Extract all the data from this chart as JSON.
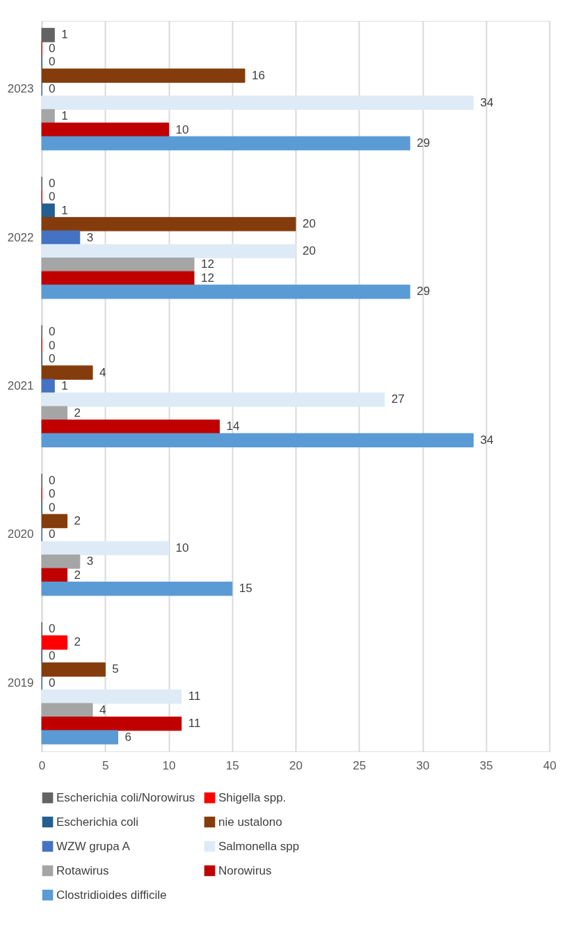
{
  "chart_data": {
    "type": "bar",
    "orientation": "horizontal",
    "categories": [
      "2023",
      "2022",
      "2021",
      "2020",
      "2019"
    ],
    "series": [
      {
        "name": "Escherichia coli/Norowirus",
        "color": "#636363",
        "values": [
          1,
          0,
          0,
          0,
          0
        ]
      },
      {
        "name": "Shigella spp.",
        "color": "#ff0000",
        "values": [
          0,
          0,
          0,
          0,
          2
        ]
      },
      {
        "name": "Escherichia coli",
        "color": "#255e91",
        "values": [
          0,
          1,
          0,
          0,
          0
        ]
      },
      {
        "name": "nie ustalono",
        "color": "#843c0c",
        "values": [
          16,
          20,
          4,
          2,
          5
        ]
      },
      {
        "name": "WZW grupa A",
        "color": "#4472c4",
        "values": [
          0,
          3,
          1,
          0,
          0
        ]
      },
      {
        "name": "Salmonella spp",
        "color": "#deebf7",
        "values": [
          34,
          20,
          27,
          10,
          11
        ]
      },
      {
        "name": "Rotawirus",
        "color": "#a5a5a5",
        "values": [
          1,
          12,
          2,
          3,
          4
        ]
      },
      {
        "name": "Norowirus",
        "color": "#c00000",
        "values": [
          10,
          12,
          14,
          2,
          11
        ]
      },
      {
        "name": "Clostridioides difficile",
        "color": "#5b9bd5",
        "values": [
          29,
          29,
          34,
          15,
          6
        ]
      }
    ],
    "xlim": [
      0,
      40
    ],
    "xticks": [
      0,
      5,
      10,
      15,
      20,
      25,
      30,
      35,
      40
    ],
    "grid": "x",
    "legend": "bottom",
    "data_labels": true
  }
}
